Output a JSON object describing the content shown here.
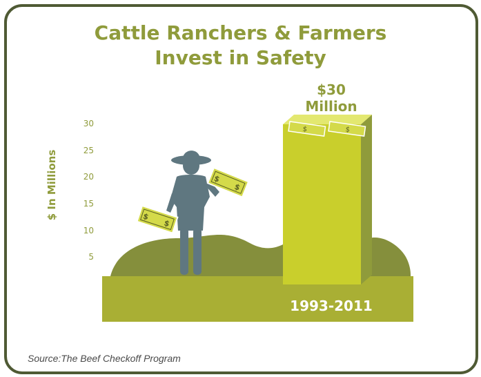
{
  "colors": {
    "frame": "#4f5a34",
    "title": "#8f9b3b",
    "bar_front": "#c9cf2c",
    "bar_side": "#8f9b3b",
    "hills": "#858f3c",
    "ground": "#a9af34",
    "figure": "#5f7780",
    "money": "#d4da4a"
  },
  "icons": [
    "rancher-figure-icon",
    "dollar-bill-icon"
  ],
  "chart_data": {
    "type": "bar",
    "title": "Cattle Ranchers & Farmers Invest in Safety",
    "title_lines": [
      "Cattle Ranchers & Farmers",
      "Invest in Safety"
    ],
    "xlabel": "",
    "ylabel": "$ In Millions",
    "yticks": [
      "5",
      "10",
      "15",
      "20",
      "25",
      "30"
    ],
    "ylim": [
      0,
      30
    ],
    "categories": [
      "1993-2011"
    ],
    "values": [
      30
    ],
    "data_label_lines": [
      "$30",
      "Million"
    ],
    "source": "Source:The Beef Checkoff Program"
  }
}
